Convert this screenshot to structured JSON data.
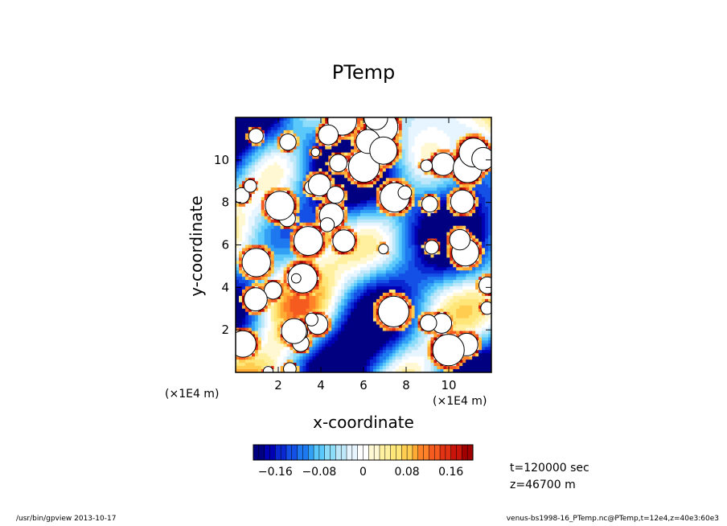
{
  "chart_data": {
    "type": "heatmap",
    "title": "PTemp",
    "xlabel": "x-coordinate",
    "ylabel": "y-coordinate",
    "x_unit_label": "(×1E4 m)",
    "y_unit_label": "(×1E4 m)",
    "xlim": [
      0,
      12
    ],
    "ylim": [
      0,
      12
    ],
    "xticks": [
      2,
      4,
      6,
      8,
      10
    ],
    "yticks": [
      2,
      4,
      6,
      8,
      10
    ],
    "colorbar": {
      "min": -0.2,
      "max": 0.2,
      "step": 0.01,
      "tick_values": [
        -0.16,
        -0.08,
        0,
        0.08,
        0.16
      ],
      "tick_labels": [
        "−0.16",
        "−0.08",
        "0",
        "0.08",
        "0.16"
      ],
      "colors": [
        "#000080",
        "#0000b4",
        "#0a28d2",
        "#1450e6",
        "#1e78f0",
        "#32a0f5",
        "#5ac8fa",
        "#8cdcfa",
        "#bee8fa",
        "#e6f5ff",
        "#ffffff",
        "#fff8d2",
        "#fff0a0",
        "#ffe678",
        "#ffcd50",
        "#ffaa32",
        "#ff8228",
        "#f55a1e",
        "#e13214",
        "#c8140a",
        "#a00000"
      ]
    },
    "white_region_description": "",
    "grid": false,
    "legend": "colorbar-bottom"
  },
  "annotations": {
    "time": "t=120000 sec",
    "z": "z=46700 m"
  },
  "footer": {
    "left": "/usr/bin/gpview   2013-10-17",
    "right": "venus-bs1998-16_PTemp.nc@PTemp,t=12e4,z=40e3:60e3"
  }
}
